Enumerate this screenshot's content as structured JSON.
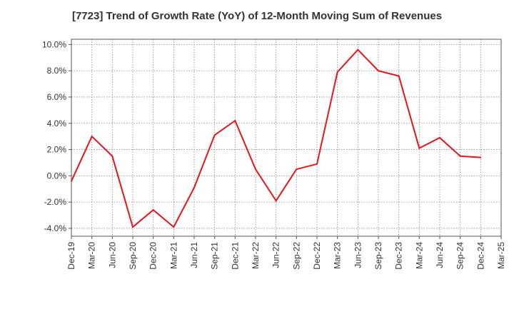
{
  "chart_data": {
    "type": "line",
    "title": "[7723]  Trend of Growth Rate (YoY) of 12-Month Moving Sum of Revenues",
    "xlabel": "",
    "ylabel": "",
    "x_ticks": [
      "Dec-19",
      "Mar-20",
      "Jun-20",
      "Sep-20",
      "Dec-20",
      "Mar-21",
      "Jun-21",
      "Sep-21",
      "Dec-21",
      "Mar-22",
      "Jun-22",
      "Sep-22",
      "Dec-22",
      "Mar-23",
      "Jun-23",
      "Sep-23",
      "Dec-23",
      "Mar-24",
      "Jun-24",
      "Sep-24",
      "Dec-24",
      "Mar-25"
    ],
    "y_ticks": [
      "10.0%",
      "8.0%",
      "6.0%",
      "4.0%",
      "2.0%",
      "0.0%",
      "-2.0%",
      "-4.0%"
    ],
    "ylim": [
      -4.6,
      10.4
    ],
    "grid": true,
    "series": [
      {
        "color": "#e8141a",
        "x": [
          "Dec-19",
          "Mar-20",
          "Jun-20",
          "Sep-20",
          "Dec-20",
          "Mar-21",
          "Jun-21",
          "Sep-21",
          "Dec-21",
          "Mar-22",
          "Jun-22",
          "Sep-22",
          "Dec-22",
          "Mar-23",
          "Jun-23",
          "Sep-23",
          "Dec-23",
          "Mar-24",
          "Jun-24",
          "Sep-24",
          "Dec-24"
        ],
        "values": [
          -0.4,
          3.0,
          1.5,
          -3.9,
          -2.6,
          -3.9,
          -0.9,
          3.1,
          4.2,
          0.5,
          -1.9,
          0.5,
          0.9,
          7.9,
          9.6,
          8.0,
          7.6,
          2.1,
          2.9,
          1.5,
          1.4
        ]
      }
    ]
  }
}
